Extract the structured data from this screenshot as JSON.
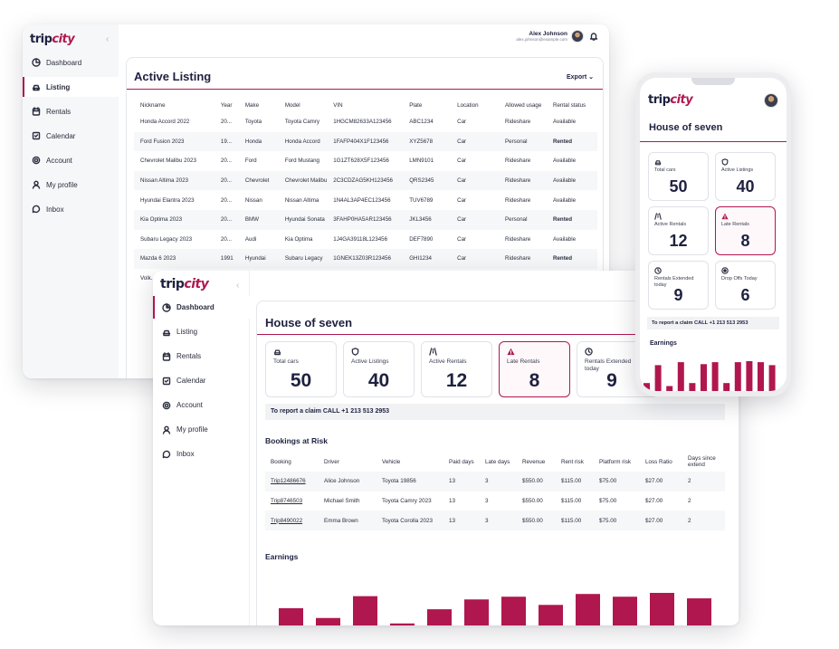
{
  "brand": {
    "logo_main": "trip",
    "logo_accent": "city",
    "accent_color": "#b0174f"
  },
  "user": {
    "name": "Alex Johnson",
    "email": "alex.johnson@example.com"
  },
  "nav": {
    "items": [
      {
        "label": "Dashboard",
        "icon": "pie-chart-icon"
      },
      {
        "label": "Listing",
        "icon": "car-icon"
      },
      {
        "label": "Rentals",
        "icon": "receipt-icon"
      },
      {
        "label": "Calendar",
        "icon": "calendar-icon"
      },
      {
        "label": "Account",
        "icon": "gear-icon"
      },
      {
        "label": "My profile",
        "icon": "user-icon"
      },
      {
        "label": "Inbox",
        "icon": "chat-icon"
      }
    ]
  },
  "listing": {
    "title": "Active Listing",
    "export_label": "Export",
    "columns": [
      "Nickname",
      "Year",
      "Make",
      "Model",
      "VIN",
      "Plate",
      "Location",
      "Allowed usage",
      "Rental status"
    ],
    "rows": [
      [
        "Honda Accord 2022",
        "20...",
        "Toyota",
        "Toyota Camry",
        "1HGCM82633A123456",
        "ABC1234",
        "Car",
        "Rideshare",
        "Available"
      ],
      [
        "Ford Fusion 2023",
        "19...",
        "Honda",
        "Honda Accord",
        "1FAFP404X1F123456",
        "XYZ5678",
        "Car",
        "Personal",
        "Rented"
      ],
      [
        "Chevrolet Malibu 2023",
        "20...",
        "Ford",
        "Ford Mustang",
        "1G1ZT628X5F123456",
        "LMN9101",
        "Car",
        "Rideshare",
        "Available"
      ],
      [
        "Nissan Altima 2023",
        "20...",
        "Chevrolet",
        "Chevrolet Malibu",
        "2C3CDZAG5KH123456",
        "QRS2345",
        "Car",
        "Rideshare",
        "Available"
      ],
      [
        "Hyundai Elantra 2023",
        "20...",
        "Nissan",
        "Nissan Altima",
        "1N4AL3AP4EC123456",
        "TUV6789",
        "Car",
        "Rideshare",
        "Available"
      ],
      [
        "Kia Optima 2023",
        "20...",
        "BMW",
        "Hyundai Sonata",
        "3FAHP0HA5AR123456",
        "JKL3456",
        "Car",
        "Personal",
        "Rented"
      ],
      [
        "Subaru Legacy 2023",
        "20...",
        "Audi",
        "Kia Optima",
        "1J4GA39118L123456",
        "DEF7890",
        "Car",
        "Rideshare",
        "Available"
      ],
      [
        "Mazda 6 2023",
        "1991",
        "Hyundai",
        "Subaru Legacy",
        "1GNEK13Z03R123456",
        "GHI1234",
        "Car",
        "Rideshare",
        "Rented"
      ],
      [
        "Volk...",
        "",
        "",
        "",
        "",
        "",
        "",
        "",
        ""
      ]
    ]
  },
  "dashboard": {
    "title": "House of seven",
    "stats": [
      {
        "label": "Total cars",
        "value": "50",
        "icon": "car-icon"
      },
      {
        "label": "Active Listings",
        "value": "40",
        "icon": "shield-icon"
      },
      {
        "label": "Active Rentals",
        "value": "12",
        "icon": "road-icon"
      },
      {
        "label": "Late Rentals",
        "value": "8",
        "icon": "warning-icon"
      },
      {
        "label": "Rentals Extended today",
        "value": "9",
        "icon": "clock-icon"
      },
      {
        "label": "Drop Offs Today",
        "value": "6",
        "icon": "target-icon"
      }
    ],
    "claim_text": "To report a claim CALL +1 213 513 2953",
    "bookings_title": "Bookings at Risk",
    "bookings_columns": [
      "Booking",
      "Driver",
      "Vehicle",
      "Paid days",
      "Late days",
      "Revenue",
      "Rent risk",
      "Platform risk",
      "Loss Ratio",
      "Days since extend"
    ],
    "bookings": [
      [
        "Trip12486676",
        "Alice Johnson",
        "Toyota 19856",
        "13",
        "3",
        "$550.00",
        "$115.00",
        "$75.00",
        "$27.00",
        "2"
      ],
      [
        "Trip8746503",
        "Michael Smith",
        "Toyota Camry 2023",
        "13",
        "3",
        "$550.00",
        "$115.00",
        "$75.00",
        "$27.00",
        "2"
      ],
      [
        "Trip8490022",
        "Emma Brown",
        "Toyota Corolla 2023",
        "13",
        "3",
        "$550.00",
        "$115.00",
        "$75.00",
        "$27.00",
        "2"
      ]
    ],
    "earnings_title": "Earnings"
  },
  "chart_data": [
    {
      "type": "bar",
      "title": "Earnings",
      "values": [
        35,
        17,
        57,
        7,
        33,
        51,
        56,
        41,
        61,
        56,
        63,
        53
      ],
      "bar_color": "#b0174f"
    },
    {
      "type": "bar",
      "title": "Earnings",
      "values": [
        8,
        26,
        5,
        29,
        8,
        27,
        29,
        8,
        29,
        30,
        29,
        26
      ],
      "bar_color": "#b0174f"
    }
  ]
}
